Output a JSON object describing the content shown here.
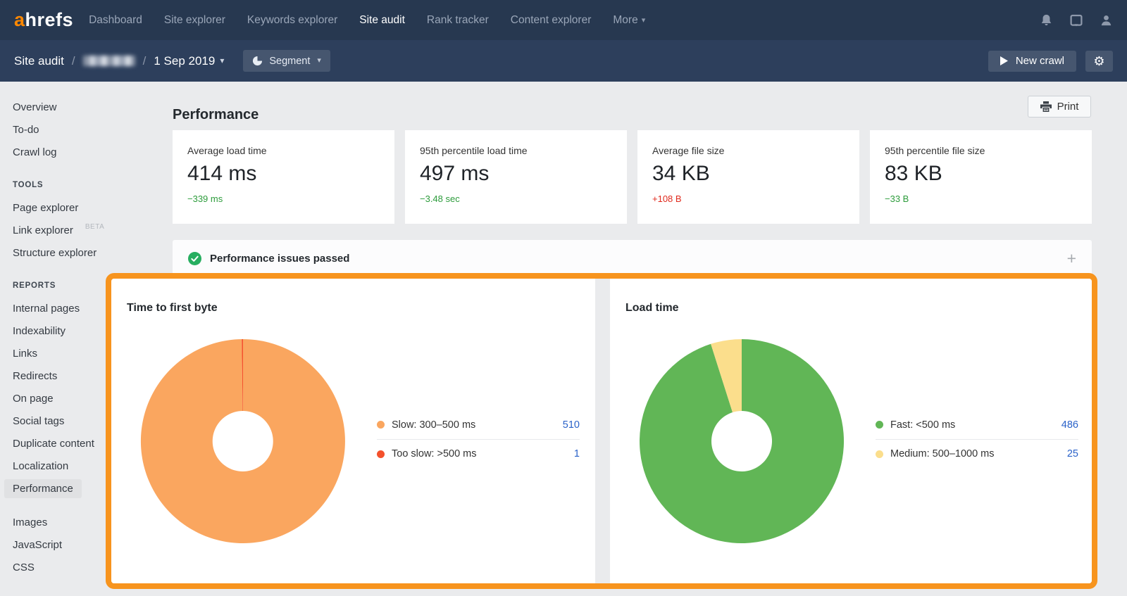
{
  "topnav": {
    "logo_a": "a",
    "logo_rest": "hrefs",
    "items": [
      {
        "label": "Dashboard",
        "active": false
      },
      {
        "label": "Site explorer",
        "active": false
      },
      {
        "label": "Keywords explorer",
        "active": false
      },
      {
        "label": "Site audit",
        "active": true
      },
      {
        "label": "Rank tracker",
        "active": false
      },
      {
        "label": "Content explorer",
        "active": false
      },
      {
        "label": "More",
        "active": false,
        "has_caret": true
      }
    ],
    "icons": [
      "bell-icon",
      "feedback-icon",
      "user-icon"
    ]
  },
  "subnav": {
    "section": "Site audit",
    "separator": "/",
    "project_name_blurred": true,
    "date": "1 Sep 2019",
    "segment_label": "Segment",
    "new_crawl_label": "New crawl",
    "icons": [
      "pie-icon",
      "play-icon",
      "gear-icon"
    ]
  },
  "sidebar": {
    "items_top": [
      "Overview",
      "To-do",
      "Crawl log"
    ],
    "tools": {
      "title": "TOOLS",
      "items": [
        "Page explorer",
        "Link explorer",
        "Structure explorer"
      ],
      "beta_badge": "BETA"
    },
    "reports": {
      "title": "REPORTS",
      "items": [
        "Internal pages",
        "Indexability",
        "Links",
        "Redirects",
        "On page",
        "Social tags",
        "Duplicate content",
        "Localization",
        "Performance"
      ],
      "active_item": "Performance"
    },
    "items_bottom": [
      "Images",
      "JavaScript",
      "CSS"
    ]
  },
  "main": {
    "title": "Performance",
    "print_label": "Print",
    "stat_cards": [
      {
        "label": "Average load time",
        "value": "414 ms",
        "delta": "−339 ms",
        "delta_color": "green"
      },
      {
        "label": "95th percentile load time",
        "value": "497 ms",
        "delta": "−3.48 sec",
        "delta_color": "green"
      },
      {
        "label": "Average file size",
        "value": "34 KB",
        "delta": "+108 B",
        "delta_color": "red"
      },
      {
        "label": "95th percentile file size",
        "value": "83 KB",
        "delta": "−33 B",
        "delta_color": "green"
      }
    ],
    "issues_row": {
      "label": "Performance issues passed",
      "expand_icon": "+"
    }
  },
  "chart_data": [
    {
      "type": "pie",
      "donut": true,
      "title": "Time to first byte",
      "legend_position": "right",
      "series": [
        {
          "name": "Slow: 300–500 ms",
          "value": 510,
          "color": "#faa65f"
        },
        {
          "name": "Too slow: >500 ms",
          "value": 1,
          "color": "#f4512c"
        }
      ]
    },
    {
      "type": "pie",
      "donut": true,
      "title": "Load time",
      "legend_position": "right",
      "series": [
        {
          "name": "Fast: <500 ms",
          "value": 486,
          "color": "#61b656"
        },
        {
          "name": "Medium: 500–1000 ms",
          "value": 25,
          "color": "#fbde8c"
        }
      ]
    }
  ],
  "colors": {
    "highlight_border": "#f7941e",
    "brand_orange": "#ff8800",
    "legend_value_blue": "#2a62c9",
    "delta_green": "#2d9c3c",
    "delta_red": "#e02a1d",
    "passed_check_green": "#27ae60",
    "topbar_bg": "#273850",
    "subnav_bg": "#2d3f5c",
    "page_bg": "#eaebed"
  }
}
